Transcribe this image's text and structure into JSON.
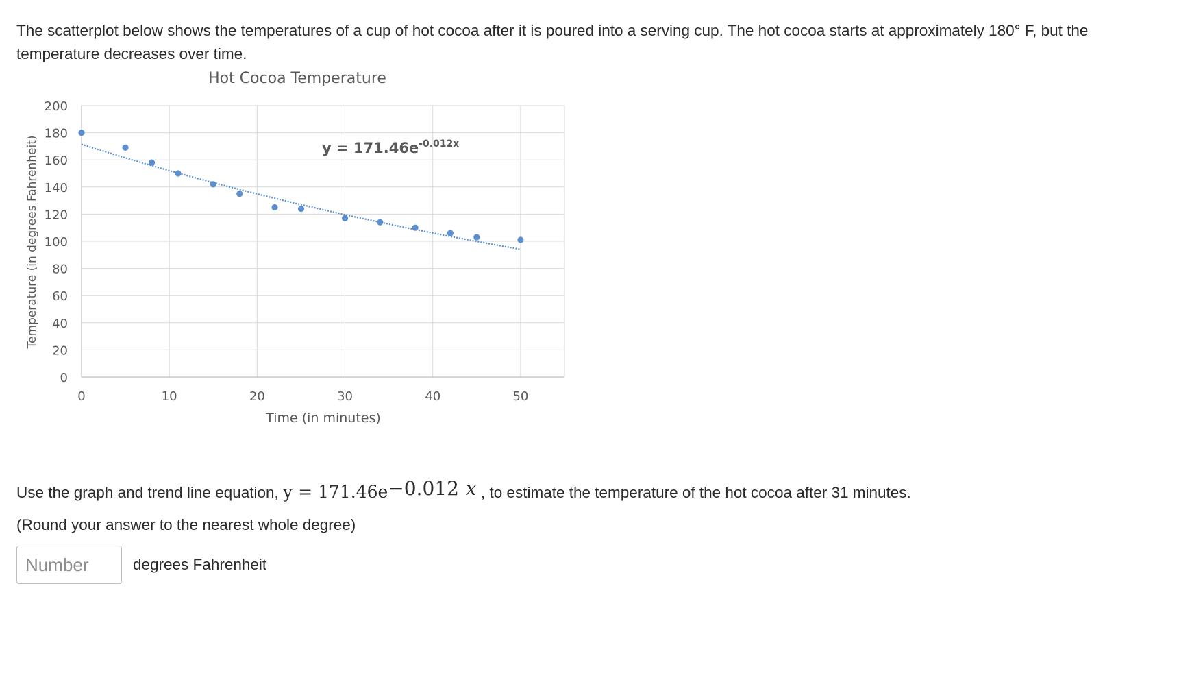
{
  "intro_text": "The scatterplot below shows the temperatures of a cup of hot cocoa after it is poured into a serving cup. The hot cocoa starts at approximately 180° F, but the temperature decreases over time.",
  "chart_data": {
    "type": "scatter",
    "title": "Hot Cocoa Temperature",
    "xlabel": "Time (in minutes)",
    "ylabel": "Temperature (in degrees Fahrenheit)",
    "xlim": [
      0,
      55
    ],
    "ylim": [
      0,
      200
    ],
    "x_ticks": [
      0,
      10,
      20,
      30,
      40,
      50
    ],
    "y_ticks": [
      0,
      20,
      40,
      60,
      80,
      100,
      120,
      140,
      160,
      180,
      200
    ],
    "grid": true,
    "points": [
      {
        "x": 0,
        "y": 180
      },
      {
        "x": 5,
        "y": 169
      },
      {
        "x": 8,
        "y": 158
      },
      {
        "x": 11,
        "y": 150
      },
      {
        "x": 15,
        "y": 142
      },
      {
        "x": 18,
        "y": 135
      },
      {
        "x": 22,
        "y": 125
      },
      {
        "x": 25,
        "y": 124
      },
      {
        "x": 30,
        "y": 117
      },
      {
        "x": 34,
        "y": 114
      },
      {
        "x": 38,
        "y": 110
      },
      {
        "x": 42,
        "y": 106
      },
      {
        "x": 45,
        "y": 103
      },
      {
        "x": 50,
        "y": 101
      }
    ],
    "trendline": {
      "type": "exponential",
      "a": 171.46,
      "b": -0.012,
      "x_range": [
        0,
        50
      ],
      "label_main": "y = 171.46e",
      "label_exp": "-0.012x"
    },
    "colors": {
      "points": "#5b8fd0",
      "trendline": "#5b8fd0",
      "grid": "#d9d9d9",
      "axis": "#bfbfbf"
    }
  },
  "question": {
    "before": "Use the graph and trend line equation, ",
    "eq_lhs": "y = 171.46e",
    "eq_exp": "−0.012",
    "eq_var": "x",
    "after": " , to estimate the temperature of the hot cocoa after 31 minutes."
  },
  "round_note": "(Round your answer to the nearest whole degree)",
  "answer": {
    "placeholder": "Number",
    "value": "",
    "unit": "degrees Fahrenheit"
  }
}
